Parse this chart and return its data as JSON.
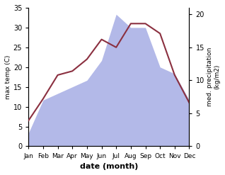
{
  "months": [
    "Jan",
    "Feb",
    "Mar",
    "Apr",
    "May",
    "Jun",
    "Jul",
    "Aug",
    "Sep",
    "Oct",
    "Nov",
    "Dec"
  ],
  "month_positions": [
    0,
    1,
    2,
    3,
    4,
    5,
    6,
    7,
    8,
    9,
    10,
    11
  ],
  "max_temp": [
    6.5,
    12.0,
    18.0,
    19.0,
    22.0,
    27.0,
    25.0,
    31.0,
    31.0,
    28.5,
    18.0,
    11.0
  ],
  "precipitation": [
    2.0,
    7.0,
    8.0,
    9.0,
    10.0,
    13.0,
    20.0,
    18.0,
    18.0,
    12.0,
    11.0,
    7.0
  ],
  "temp_color": "#8B3040",
  "precip_fill_color": "#b3b9e8",
  "temp_ylim": [
    0,
    35
  ],
  "precip_ylim": [
    0,
    21
  ],
  "temp_yticks": [
    0,
    5,
    10,
    15,
    20,
    25,
    30,
    35
  ],
  "precip_yticks": [
    0,
    5,
    10,
    15,
    20
  ],
  "ylabel_left": "max temp (C)",
  "ylabel_right": "med. precipitation\n(kg/m2)",
  "xlabel": "date (month)",
  "background_color": "#ffffff"
}
